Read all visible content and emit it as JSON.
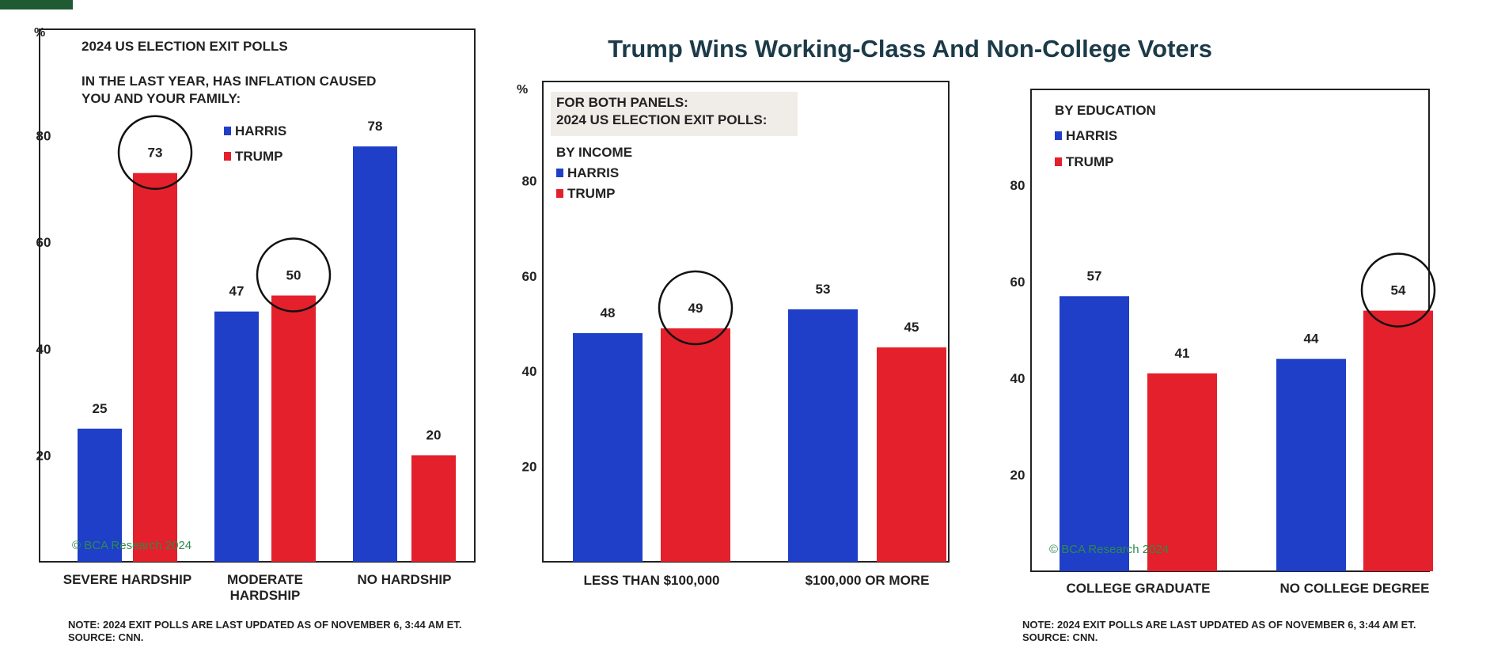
{
  "page": {
    "main_title": "Trump Wins Working-Class And Non-College Voters"
  },
  "notes": {
    "left": [
      "NOTE: 2024 EXIT POLLS ARE LAST UPDATED AS OF NOVEMBER 6, 3:44 AM ET.",
      "SOURCE: CNN."
    ],
    "right": [
      "NOTE: 2024 EXIT POLLS ARE LAST UPDATED AS OF NOVEMBER 6, 3:44 AM ET.",
      "SOURCE: CNN."
    ]
  },
  "colors": {
    "harris": "#1f3fc8",
    "trump": "#e3202b"
  },
  "chart_data": [
    {
      "type": "bar",
      "title": "2024 US ELECTION EXIT POLLS",
      "subtitle": [
        "IN THE LAST YEAR, HAS INFLATION CAUSED",
        "YOU AND YOUR FAMILY:"
      ],
      "ylabel": "%",
      "ylim": [
        0,
        100
      ],
      "yticks": [
        20,
        40,
        60,
        80
      ],
      "categories": [
        [
          "SEVERE HARDSHIP"
        ],
        [
          "MODERATE",
          "HARDSHIP"
        ],
        [
          "NO HARDSHIP"
        ]
      ],
      "series": [
        {
          "name": "HARRIS",
          "values": [
            25,
            47,
            78
          ]
        },
        {
          "name": "TRUMP",
          "values": [
            73,
            50,
            20
          ]
        }
      ],
      "circled": [
        [
          1,
          0
        ],
        [
          1,
          1
        ]
      ],
      "legend": "top",
      "watermark": "© BCA Research 2024"
    },
    {
      "type": "bar",
      "header": [
        "FOR BOTH PANELS:",
        "2024 US ELECTION EXIT POLLS:"
      ],
      "title": "BY INCOME",
      "ylabel": "%",
      "ylim": [
        0,
        100
      ],
      "yticks": [
        20,
        40,
        60,
        80
      ],
      "categories": [
        [
          "LESS THAN $100,000"
        ],
        [
          "$100,000 OR MORE"
        ]
      ],
      "series": [
        {
          "name": "HARRIS",
          "values": [
            48,
            53
          ]
        },
        {
          "name": "TRUMP",
          "values": [
            49,
            45
          ]
        }
      ],
      "circled": [
        [
          1,
          0
        ]
      ],
      "legend": "top-left"
    },
    {
      "type": "bar",
      "title": "BY EDUCATION",
      "ylim": [
        0,
        100
      ],
      "yticks": [
        20,
        40,
        60,
        80
      ],
      "categories": [
        [
          "COLLEGE GRADUATE"
        ],
        [
          "NO COLLEGE DEGREE"
        ]
      ],
      "series": [
        {
          "name": "HARRIS",
          "values": [
            57,
            44
          ]
        },
        {
          "name": "TRUMP",
          "values": [
            41,
            54
          ]
        }
      ],
      "circled": [
        [
          1,
          1
        ]
      ],
      "legend": "top-left",
      "watermark": "© BCA Research 2024"
    }
  ]
}
